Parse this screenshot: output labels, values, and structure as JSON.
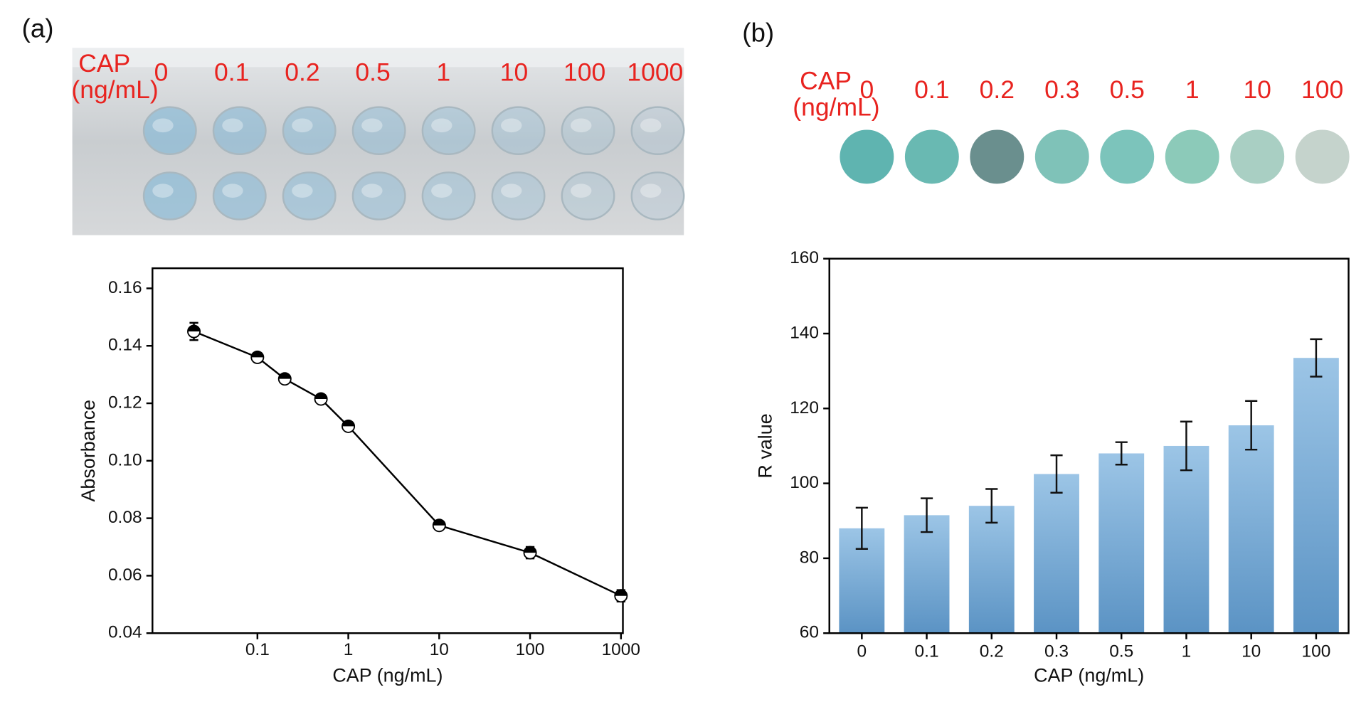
{
  "panels": [
    {
      "label": "(a)",
      "photo": {
        "title": [
          "CAP",
          "(ng/mL)"
        ],
        "labels": [
          "0",
          "0.1",
          "0.2",
          "0.5",
          "1",
          "10",
          "100",
          "1000"
        ]
      }
    },
    {
      "label": "(b)",
      "photo": {
        "title": [
          "CAP",
          "(ng/mL)"
        ],
        "labels": [
          "0",
          "0.1",
          "0.2",
          "0.3",
          "0.5",
          "1",
          "10",
          "100"
        ]
      }
    }
  ],
  "chart_data": [
    {
      "type": "line",
      "x_label": "CAP (ng/mL)",
      "y_label": "Absorbance",
      "x": [
        0.02,
        0.1,
        0.2,
        0.5,
        1,
        10,
        100,
        1000
      ],
      "values": [
        0.145,
        0.136,
        0.1285,
        0.1215,
        0.112,
        0.0775,
        0.068,
        0.053
      ],
      "errors": [
        0.003,
        0.0015,
        0.001,
        0.001,
        0.001,
        0.001,
        0.002,
        0.002
      ],
      "color": "#000000",
      "xscale": "log",
      "xlim": [
        0.007,
        1050
      ],
      "xticks": [
        0.1,
        1,
        10,
        100,
        1000
      ],
      "ylim": [
        0.04,
        0.167
      ],
      "yticks": [
        0.04,
        0.06,
        0.08,
        {
          "value": 0.1,
          "label": "0.10"
        },
        0.12,
        0.14,
        0.16
      ]
    },
    {
      "type": "bar",
      "x_label": "CAP (ng/mL)",
      "y_label": "R value",
      "categories": [
        "0",
        "0.1",
        "0.2",
        "0.3",
        "0.5",
        "1",
        "10",
        "100"
      ],
      "values": [
        88,
        91.5,
        94,
        102.5,
        108,
        110,
        115.5,
        133.5
      ],
      "errors": [
        5.5,
        4.5,
        4.5,
        5,
        3,
        6.5,
        6.5,
        5
      ],
      "color": "#5b93c4",
      "ylim": [
        60,
        160
      ],
      "yticks": [
        60,
        80,
        100,
        120,
        140,
        160
      ]
    }
  ]
}
